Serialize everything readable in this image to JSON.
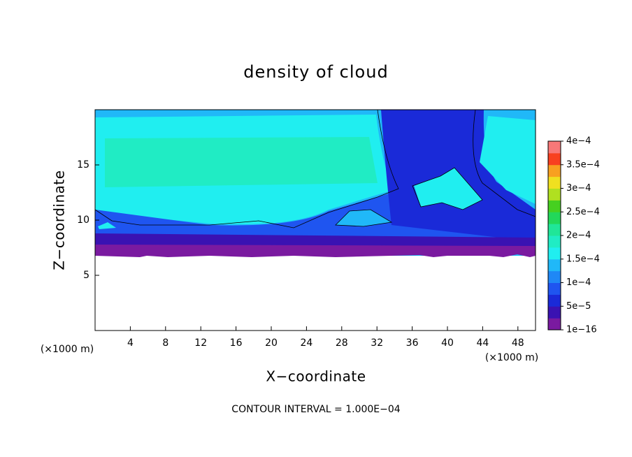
{
  "chart_data": {
    "type": "contour",
    "title": "density of cloud",
    "x_label": "X−coordinate",
    "y_label": "Z−coordinate",
    "x_unit_left": "(×1000 m)",
    "x_unit_right": "(×1000 m)",
    "footer": "CONTOUR INTERVAL = 1.000E−04",
    "xlim": [
      0,
      50
    ],
    "xticks": [
      4,
      8,
      12,
      16,
      20,
      24,
      28,
      32,
      36,
      40,
      44,
      48
    ],
    "ylim": [
      0,
      20
    ],
    "yticks": [
      5,
      10,
      15
    ],
    "clim": [
      0,
      0.0004
    ],
    "cticks": [
      {
        "value": 1e-16,
        "label": "1e−16"
      },
      {
        "value": 5e-05,
        "label": "5e−5"
      },
      {
        "value": 0.0001,
        "label": "1e−4"
      },
      {
        "value": 0.00015,
        "label": "1.5e−4"
      },
      {
        "value": 0.0002,
        "label": "2e−4"
      },
      {
        "value": 0.00025,
        "label": "2.5e−4"
      },
      {
        "value": 0.0003,
        "label": "3e−4"
      },
      {
        "value": 0.00035,
        "label": "3.5e−4"
      },
      {
        "value": 0.0004,
        "label": "4e−4"
      }
    ],
    "colors": [
      "#7a1aa0",
      "#3a12b2",
      "#1a2ad8",
      "#1f55f0",
      "#1f88f6",
      "#20b8f8",
      "#20eef0",
      "#20ecc4",
      "#20e698",
      "#22d85a",
      "#46d020",
      "#b0e020",
      "#f0e020",
      "#f8a020",
      "#f84020",
      "#f87878"
    ]
  }
}
